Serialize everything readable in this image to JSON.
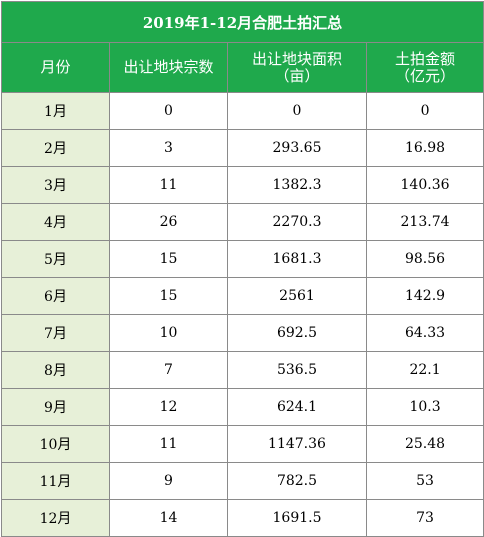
{
  "table": {
    "title": "2019年1-12月合肥土拍汇总",
    "headers": [
      {
        "line1": "月份",
        "line2": ""
      },
      {
        "line1": "出让地块宗数",
        "line2": ""
      },
      {
        "line1": "出让地块面积",
        "line2": "（亩）"
      },
      {
        "line1": "土拍金额",
        "line2": "（亿元）"
      }
    ],
    "rows": [
      {
        "month": "1月",
        "count": "0",
        "area": "0",
        "amount": "0"
      },
      {
        "month": "2月",
        "count": "3",
        "area": "293.65",
        "amount": "16.98"
      },
      {
        "month": "3月",
        "count": "11",
        "area": "1382.3",
        "amount": "140.36"
      },
      {
        "month": "4月",
        "count": "26",
        "area": "2270.3",
        "amount": "213.74"
      },
      {
        "month": "5月",
        "count": "15",
        "area": "1681.3",
        "amount": "98.56"
      },
      {
        "month": "6月",
        "count": "15",
        "area": "2561",
        "amount": "142.9"
      },
      {
        "month": "7月",
        "count": "10",
        "area": "692.5",
        "amount": "64.33"
      },
      {
        "month": "8月",
        "count": "7",
        "area": "536.5",
        "amount": "22.1"
      },
      {
        "month": "9月",
        "count": "12",
        "area": "624.1",
        "amount": "10.3"
      },
      {
        "month": "10月",
        "count": "11",
        "area": "1147.36",
        "amount": "25.48"
      },
      {
        "month": "11月",
        "count": "9",
        "area": "782.5",
        "amount": "53"
      },
      {
        "month": "12月",
        "count": "14",
        "area": "1691.5",
        "amount": "73"
      }
    ]
  },
  "colors": {
    "header_bg": "#1fa94c",
    "month_cell_bg": "#e7f0d8",
    "grid": "#8a8a8a"
  }
}
